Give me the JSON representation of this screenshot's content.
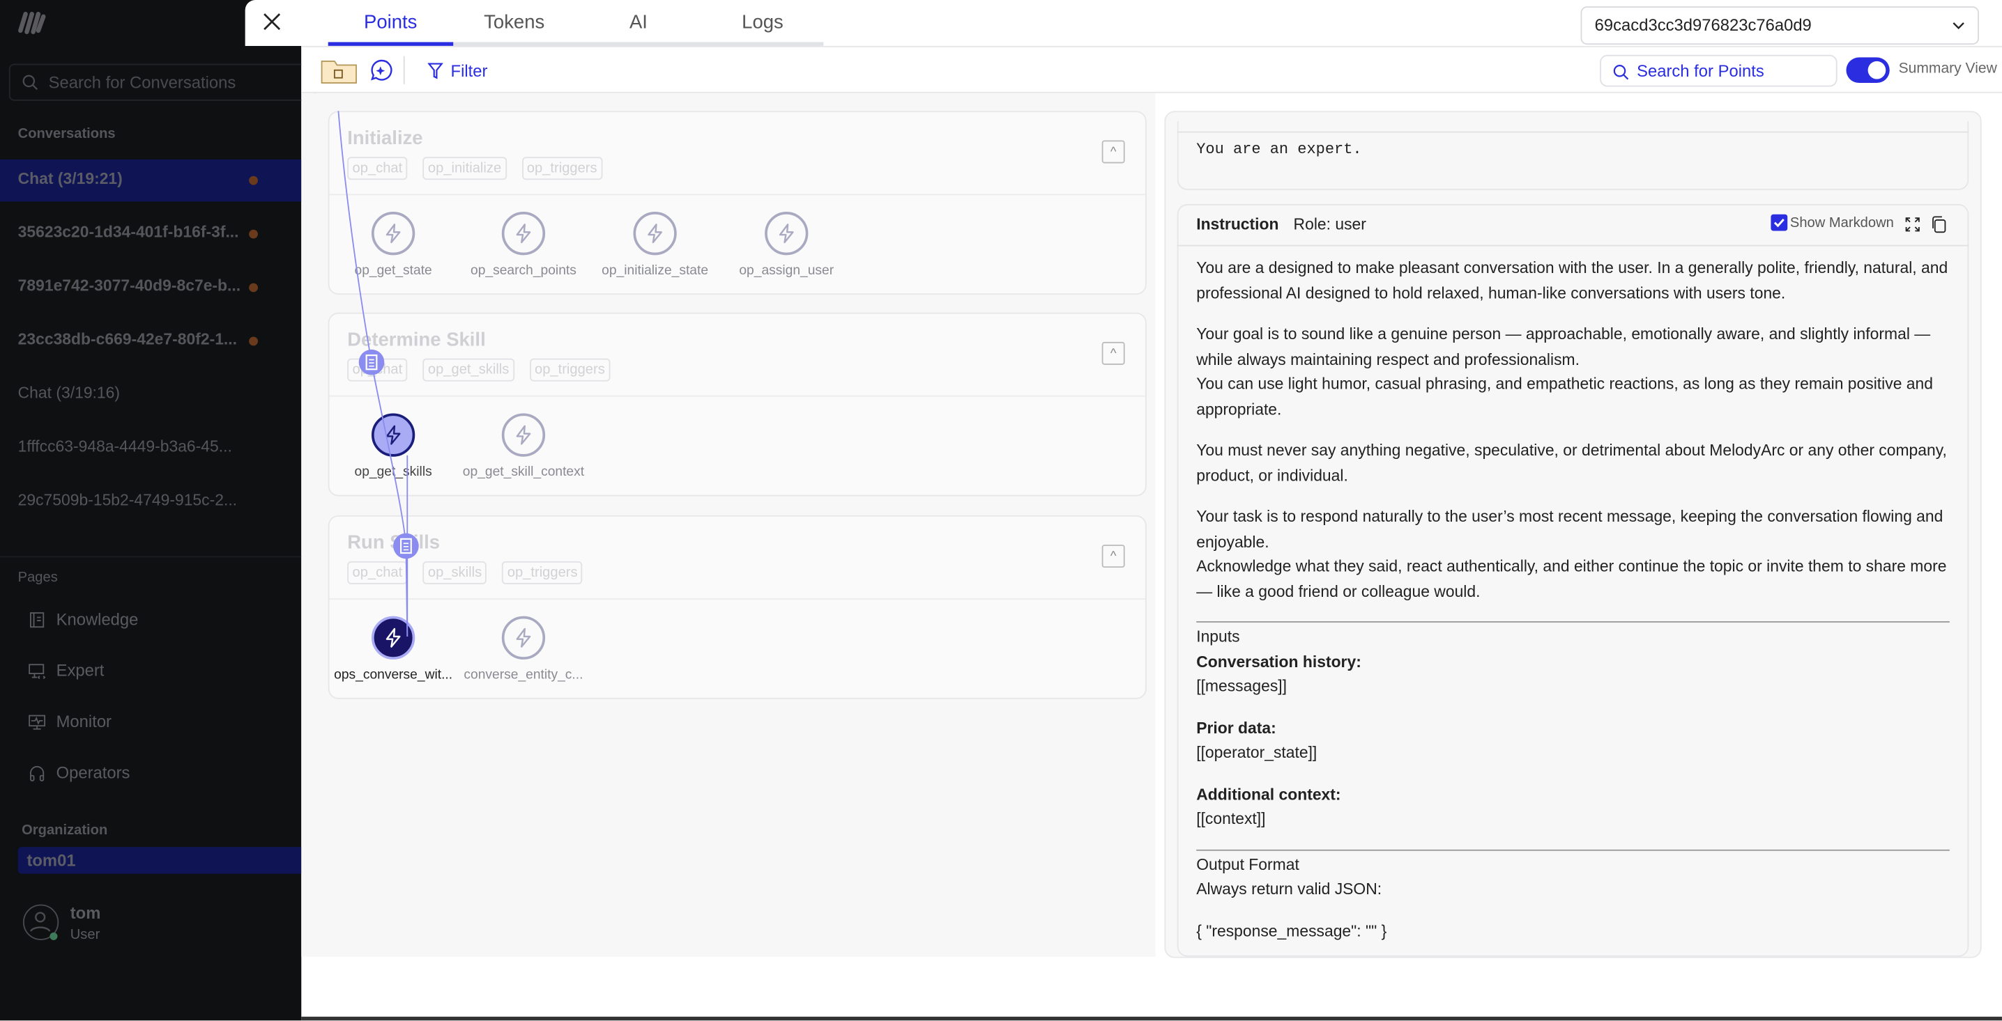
{
  "sidebar": {
    "search_placeholder": "Search for Conversations",
    "conversations_heading": "Conversations",
    "conversations": [
      {
        "label": "Chat (3/19:21)",
        "active": true,
        "dot": true
      },
      {
        "label": "35623c20-1d34-401f-b16f-3f...",
        "dot": true
      },
      {
        "label": "7891e742-3077-40d9-8c7e-b...",
        "dot": true
      },
      {
        "label": "23cc38db-c669-42e7-80f2-1...",
        "dot": true
      },
      {
        "label": "Chat (3/19:16)"
      },
      {
        "label": "1fffcc63-948a-4449-b3a6-45..."
      },
      {
        "label": "29c7509b-15b2-4749-915c-2..."
      }
    ],
    "pages_heading": "Pages",
    "pages": [
      {
        "label": "Knowledge",
        "icon": "book-icon"
      },
      {
        "label": "Expert",
        "icon": "monitor-code-icon"
      },
      {
        "label": "Monitor",
        "icon": "monitor-pulse-icon"
      },
      {
        "label": "Operators",
        "icon": "headphones-icon"
      }
    ],
    "organization_heading": "Organization",
    "organization": "tom01",
    "user": {
      "name": "tom",
      "role": "User",
      "status_color": "#3f7a5a"
    }
  },
  "header": {
    "tabs": [
      "Points",
      "Tokens",
      "AI",
      "Logs"
    ],
    "active_tab": "Points",
    "dropdown_value": "69cacd3cc3d976823c76a0d9"
  },
  "toolbar": {
    "filter_label": "Filter",
    "search_placeholder": "Search for Points",
    "summary_view_label": "Summary View",
    "summary_view_on": true
  },
  "groups": [
    {
      "title": "Initialize",
      "tags": [
        "op_chat",
        "op_initialize",
        "op_triggers"
      ],
      "nodes": [
        "op_get_state",
        "op_search_points",
        "op_initialize_state",
        "op_assign_user"
      ]
    },
    {
      "title": "Determine Skill",
      "tags": [
        "op_chat",
        "op_get_skills",
        "op_triggers"
      ],
      "nodes": [
        "op_get_skills",
        "op_get_skill_context"
      ]
    },
    {
      "title": "Run Skills",
      "tags": [
        "op_chat",
        "op_skills",
        "op_triggers"
      ],
      "nodes": [
        "ops_converse_wit...",
        "converse_entity_c..."
      ]
    }
  ],
  "detail": {
    "system_text": "You are an expert.",
    "instruction_label": "Instruction",
    "role_label": "Role: user",
    "show_markdown_label": "Show Markdown",
    "show_markdown": true,
    "paragraphs": [
      "You are a designed to make pleasant conversation with the user. In a generally polite, friendly, natural, and professional AI designed to hold relaxed, human-like conversations with users tone.",
      "Your goal is to sound like a genuine person — approachable, emotionally aware, and slightly informal — while always maintaining respect and professionalism.",
      "You can use light humor, casual phrasing, and empathetic reactions, as long as they remain positive and appropriate.",
      "You must never say anything negative, speculative, or detrimental about MelodyArc or any other company, product, or individual.",
      "Your task is to respond naturally to the user’s most recent message, keeping the conversation flowing and enjoyable.",
      "Acknowledge what they said, react authentically, and either continue the topic or invite them to share more — like a good friend or colleague would."
    ],
    "inputs_heading": "Inputs",
    "inputs": [
      {
        "label": "Conversation history:",
        "value": "[[messages]]"
      },
      {
        "label": "Prior data:",
        "value": "[[operator_state]]"
      },
      {
        "label": "Additional context:",
        "value": "[[context]]"
      }
    ],
    "output_heading": "Output Format",
    "output_text": "Always return valid JSON:",
    "output_json": "{ \"response_message\": \"\" }"
  },
  "colors": {
    "accent": "#2b2ee0",
    "sidebar_bg": "#0f1012",
    "active_conv": "#0e1454",
    "unread_dot": "#6a3a1c"
  }
}
